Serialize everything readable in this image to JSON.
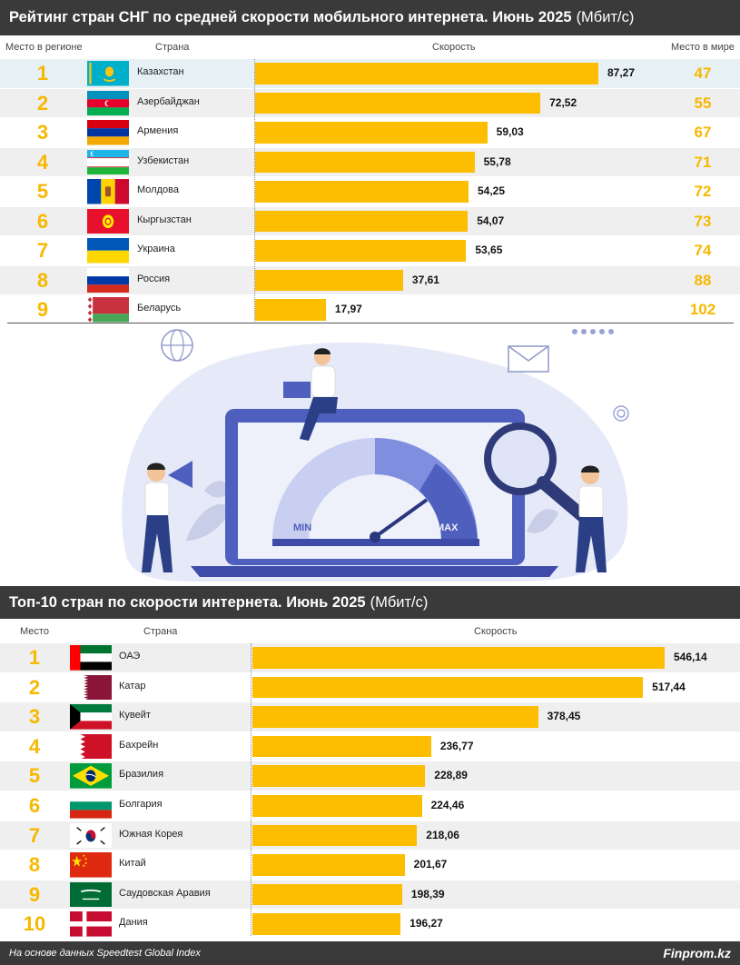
{
  "section1": {
    "title_bold": "Рейтинг стран СНГ по средней скорости мобильного интернета. Июнь 2025",
    "title_unit": "(Мбит/с)",
    "headers": {
      "rank": "Место в регионе",
      "country": "Страна",
      "speed": "Скорость",
      "world": "Место в мире"
    }
  },
  "section2": {
    "title_bold": "Топ-10 стран по скорости интернета. Июнь 2025",
    "title_unit": "(Мбит/с)",
    "headers": {
      "rank": "Место",
      "country": "Страна",
      "speed": "Скорость"
    }
  },
  "illustration": {
    "min_label": "MIN",
    "max_label": "MAX"
  },
  "footer": {
    "source": "На основе данных Speedtest Global Index",
    "brand": "Finprom.kz"
  },
  "colors": {
    "bar": "#fdbd00",
    "rank": "#f7b800",
    "header_bg": "#3a3a3a",
    "highlight_row": "#e6f0f5"
  },
  "chart_data": [
    {
      "type": "bar",
      "title": "Рейтинг стран СНГ по средней скорости мобильного интернета. Июнь 2025 (Мбит/с)",
      "categories": [
        "Казахстан",
        "Азербайджан",
        "Армения",
        "Узбекистан",
        "Молдова",
        "Кыргызстан",
        "Украина",
        "Россия",
        "Беларусь"
      ],
      "rank_labels": [
        "1",
        "2",
        "3",
        "4",
        "5",
        "6",
        "7",
        "8",
        "9"
      ],
      "values": [
        87.27,
        72.52,
        59.03,
        55.78,
        54.25,
        54.07,
        53.65,
        37.61,
        17.97
      ],
      "value_labels": [
        "87,27",
        "72,52",
        "59,03",
        "55,78",
        "54,25",
        "54,07",
        "53,65",
        "37,61",
        "17,97"
      ],
      "world_rank": [
        "47",
        "55",
        "67",
        "71",
        "72",
        "73",
        "74",
        "88",
        "102"
      ],
      "flags": [
        "kz",
        "az",
        "am",
        "uz",
        "md",
        "kg",
        "ua",
        "ru",
        "by"
      ]
    },
    {
      "type": "bar",
      "title": "Топ-10 стран по скорости интернета. Июнь 2025 (Мбит/с)",
      "categories": [
        "ОАЭ",
        "Катар",
        "Кувейт",
        "Бахрейн",
        "Бразилия",
        "Болгария",
        "Южная Корея",
        "Китай",
        "Саудовская Аравия",
        "Дания"
      ],
      "rank_labels": [
        "1",
        "2",
        "3",
        "4",
        "5",
        "6",
        "7",
        "8",
        "9",
        "10"
      ],
      "values": [
        546.14,
        517.44,
        378.45,
        236.77,
        228.89,
        224.46,
        218.06,
        201.67,
        198.39,
        196.27
      ],
      "value_labels": [
        "546,14",
        "517,44",
        "378,45",
        "236,77",
        "228,89",
        "224,46",
        "218,06",
        "201,67",
        "198,39",
        "196,27"
      ],
      "flags": [
        "ae",
        "qa",
        "kw",
        "bh",
        "br",
        "bg",
        "kr",
        "cn",
        "sa",
        "dk"
      ]
    }
  ]
}
